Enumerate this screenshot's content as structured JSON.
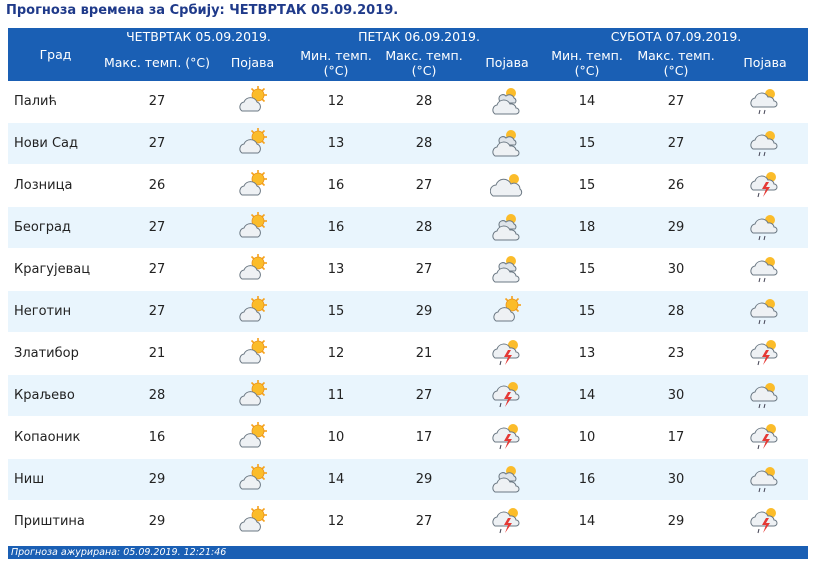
{
  "title": "Прогноза времена за Србију: ЧЕТВРТАК  05.09.2019.",
  "header": {
    "city_label": "Град",
    "days": [
      {
        "label": "ЧЕТВРТАК  05.09.2019.",
        "columns": [
          "Макс. темп. (°C)",
          "Појава"
        ]
      },
      {
        "label": "ПЕТАК  06.09.2019.",
        "columns": [
          "Мин. темп. (°C)",
          "Макс. темп. (°C)",
          "Појава"
        ]
      },
      {
        "label": "СУБОТА  07.09.2019.",
        "columns": [
          "Мин. темп. (°C)",
          "Макс. темп. (°C)",
          "Појава"
        ]
      }
    ]
  },
  "rows": [
    {
      "city": "Палић",
      "thu_max": "27",
      "thu_icon": "sunny-cloud-icon",
      "fri_min": "12",
      "fri_max": "28",
      "fri_icon": "cloud-sun-icon",
      "sat_min": "14",
      "sat_max": "27",
      "sat_icon": "cloud-rain-icon"
    },
    {
      "city": "Нови Сад",
      "thu_max": "27",
      "thu_icon": "sunny-cloud-icon",
      "fri_min": "13",
      "fri_max": "28",
      "fri_icon": "cloud-sun-icon",
      "sat_min": "15",
      "sat_max": "27",
      "sat_icon": "cloud-rain-icon"
    },
    {
      "city": "Лозница",
      "thu_max": "26",
      "thu_icon": "sunny-cloud-icon",
      "fri_min": "16",
      "fri_max": "27",
      "fri_icon": "cloudy-icon",
      "sat_min": "15",
      "sat_max": "26",
      "sat_icon": "thunderstorm-icon"
    },
    {
      "city": "Београд",
      "thu_max": "27",
      "thu_icon": "sunny-cloud-icon",
      "fri_min": "16",
      "fri_max": "28",
      "fri_icon": "cloud-sun-icon",
      "sat_min": "18",
      "sat_max": "29",
      "sat_icon": "cloud-rain-icon"
    },
    {
      "city": "Крагујевац",
      "thu_max": "27",
      "thu_icon": "sunny-cloud-icon",
      "fri_min": "13",
      "fri_max": "27",
      "fri_icon": "cloud-sun-icon",
      "sat_min": "15",
      "sat_max": "30",
      "sat_icon": "cloud-rain-icon"
    },
    {
      "city": "Неготин",
      "thu_max": "27",
      "thu_icon": "sunny-cloud-icon",
      "fri_min": "15",
      "fri_max": "29",
      "fri_icon": "sunny-cloud-icon",
      "sat_min": "15",
      "sat_max": "28",
      "sat_icon": "cloud-rain-icon"
    },
    {
      "city": "Златибор",
      "thu_max": "21",
      "thu_icon": "sunny-cloud-icon",
      "fri_min": "12",
      "fri_max": "21",
      "fri_icon": "thunderstorm-icon",
      "sat_min": "13",
      "sat_max": "23",
      "sat_icon": "thunderstorm-icon"
    },
    {
      "city": "Краљево",
      "thu_max": "28",
      "thu_icon": "sunny-cloud-icon",
      "fri_min": "11",
      "fri_max": "27",
      "fri_icon": "thunderstorm-icon",
      "sat_min": "14",
      "sat_max": "30",
      "sat_icon": "cloud-rain-icon"
    },
    {
      "city": "Копаоник",
      "thu_max": "16",
      "thu_icon": "sunny-cloud-icon",
      "fri_min": "10",
      "fri_max": "17",
      "fri_icon": "thunderstorm-icon",
      "sat_min": "10",
      "sat_max": "17",
      "sat_icon": "thunderstorm-icon"
    },
    {
      "city": "Ниш",
      "thu_max": "29",
      "thu_icon": "sunny-cloud-icon",
      "fri_min": "14",
      "fri_max": "29",
      "fri_icon": "cloud-sun-icon",
      "sat_min": "16",
      "sat_max": "30",
      "sat_icon": "cloud-rain-icon"
    },
    {
      "city": "Приштина",
      "thu_max": "29",
      "thu_icon": "sunny-cloud-icon",
      "fri_min": "12",
      "fri_max": "27",
      "fri_icon": "thunderstorm-icon",
      "sat_min": "14",
      "sat_max": "29",
      "sat_icon": "thunderstorm-icon"
    }
  ],
  "footer": "Прогноза ажурирана:  05.09.2019. 12:21:46",
  "colors": {
    "header_bg": "#1a5fb4",
    "title": "#1f3a8a",
    "row_alt": "#e9f5fd"
  }
}
